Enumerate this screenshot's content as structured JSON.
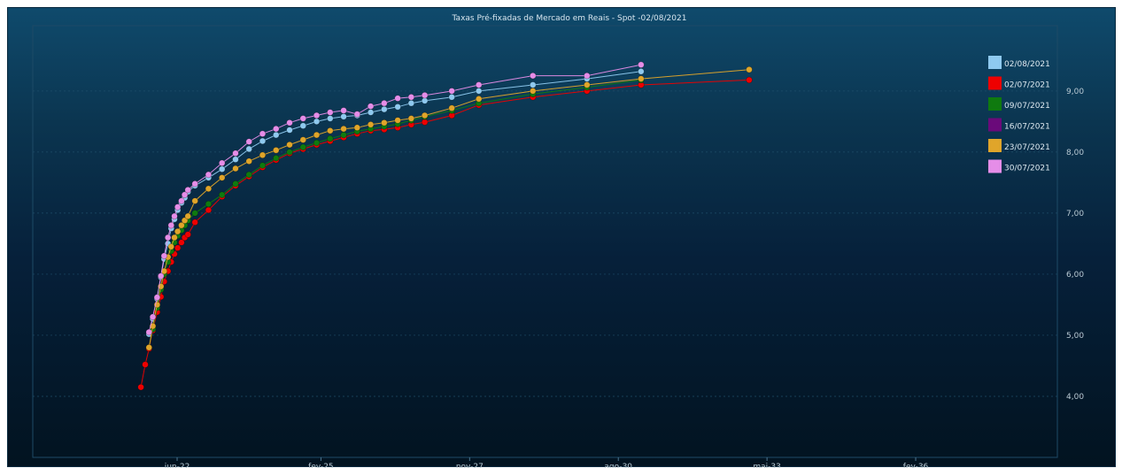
{
  "chart_data": {
    "type": "line",
    "title": "Taxas Pré-fixadas de Mercado em Reais - Spot -02/08/2021",
    "xlabel": "",
    "ylabel": "",
    "x_axis_unit": "year",
    "x_ticks": [
      {
        "label": "jun-22",
        "value": 2022.42
      },
      {
        "label": "fev-25",
        "value": 2025.08
      },
      {
        "label": "nov-27",
        "value": 2027.83
      },
      {
        "label": "ago-30",
        "value": 2030.58
      },
      {
        "label": "mai-33",
        "value": 2033.33
      },
      {
        "label": "fev-36",
        "value": 2036.08
      }
    ],
    "y_ticks": [
      "4,00",
      "5,00",
      "6,00",
      "7,00",
      "8,00",
      "9,00"
    ],
    "y_tick_values": [
      4,
      5,
      6,
      7,
      8,
      9
    ],
    "xlim": [
      2019.75,
      2038.7
    ],
    "ylim": [
      3.0,
      10.07
    ],
    "grid": true,
    "y_axis_position": "right",
    "legend_position": "top-right",
    "series": [
      {
        "name": "02/08/2021",
        "color": "#8ec9ef",
        "x": [
          2021.9,
          2021.97,
          2022.05,
          2022.12,
          2022.18,
          2022.25,
          2022.31,
          2022.37,
          2022.43,
          2022.5,
          2022.56,
          2022.62,
          2022.75,
          2023.0,
          2023.25,
          2023.5,
          2023.75,
          2024.0,
          2024.25,
          2024.5,
          2024.75,
          2025.0,
          2025.25,
          2025.5,
          2025.75,
          2026.0,
          2026.25,
          2026.5,
          2026.75,
          2027.0,
          2027.5,
          2028.0,
          2029.0,
          2030.0,
          2031.0
        ],
        "y": [
          5.02,
          5.27,
          5.6,
          5.95,
          6.25,
          6.5,
          6.75,
          6.9,
          7.05,
          7.17,
          7.25,
          7.35,
          7.45,
          7.58,
          7.72,
          7.88,
          8.05,
          8.18,
          8.28,
          8.36,
          8.43,
          8.5,
          8.55,
          8.58,
          8.6,
          8.65,
          8.7,
          8.74,
          8.8,
          8.84,
          8.9,
          9.0,
          9.1,
          9.2,
          9.32
        ]
      },
      {
        "name": "02/07/2021",
        "color": "#ee0000",
        "x": [
          2021.75,
          2021.83,
          2021.9,
          2021.97,
          2022.05,
          2022.12,
          2022.18,
          2022.25,
          2022.31,
          2022.37,
          2022.43,
          2022.5,
          2022.56,
          2022.62,
          2022.75,
          2023.0,
          2023.25,
          2023.5,
          2023.75,
          2024.0,
          2024.25,
          2024.5,
          2024.75,
          2025.0,
          2025.25,
          2025.5,
          2025.75,
          2026.0,
          2026.25,
          2026.5,
          2026.75,
          2027.0,
          2027.5,
          2028.0,
          2029.0,
          2030.0,
          2031.0,
          2033.0
        ],
        "y": [
          4.15,
          4.52,
          4.78,
          5.08,
          5.38,
          5.63,
          5.88,
          6.05,
          6.2,
          6.33,
          6.43,
          6.52,
          6.6,
          6.65,
          6.85,
          7.05,
          7.27,
          7.45,
          7.6,
          7.75,
          7.87,
          7.98,
          8.05,
          8.12,
          8.18,
          8.24,
          8.3,
          8.35,
          8.37,
          8.4,
          8.45,
          8.49,
          8.6,
          8.77,
          8.9,
          9.0,
          9.1,
          9.18
        ]
      },
      {
        "name": "09/07/2021",
        "color": "#0f7a0f",
        "x": [
          2021.9,
          2021.97,
          2022.05,
          2022.12,
          2022.18,
          2022.25,
          2022.31,
          2022.37,
          2022.43,
          2022.5,
          2022.56,
          2022.62,
          2022.75,
          2023.0,
          2023.25,
          2023.5,
          2023.75,
          2024.0,
          2024.25,
          2024.5,
          2024.75,
          2025.0,
          2025.25,
          2025.5,
          2025.75,
          2026.0,
          2026.25,
          2026.5,
          2026.75,
          2027.0,
          2027.5,
          2028.0,
          2029.0,
          2030.0,
          2031.0
        ],
        "y": [
          4.8,
          5.1,
          5.45,
          5.75,
          6.0,
          6.2,
          6.38,
          6.52,
          6.63,
          6.72,
          6.8,
          6.88,
          7.0,
          7.15,
          7.3,
          7.48,
          7.63,
          7.78,
          7.9,
          8.0,
          8.08,
          8.15,
          8.22,
          8.28,
          8.34,
          8.38,
          8.42,
          8.46,
          8.52,
          8.58,
          8.68,
          8.8,
          8.95,
          9.06,
          9.18
        ]
      },
      {
        "name": "16/07/2021",
        "color": "#6a0a7a",
        "x": [],
        "y": []
      },
      {
        "name": "23/07/2021",
        "color": "#e0a52a",
        "x": [
          2021.9,
          2021.97,
          2022.05,
          2022.12,
          2022.18,
          2022.25,
          2022.31,
          2022.37,
          2022.43,
          2022.5,
          2022.56,
          2022.62,
          2022.75,
          2023.0,
          2023.25,
          2023.5,
          2023.75,
          2024.0,
          2024.25,
          2024.5,
          2024.75,
          2025.0,
          2025.25,
          2025.5,
          2025.75,
          2026.0,
          2026.25,
          2026.5,
          2026.75,
          2027.0,
          2027.5,
          2028.0,
          2029.0,
          2030.0,
          2031.0,
          2033.0
        ],
        "y": [
          4.8,
          5.15,
          5.5,
          5.8,
          6.05,
          6.28,
          6.45,
          6.6,
          6.7,
          6.8,
          6.88,
          6.95,
          7.2,
          7.4,
          7.58,
          7.73,
          7.85,
          7.95,
          8.03,
          8.12,
          8.2,
          8.28,
          8.35,
          8.38,
          8.4,
          8.45,
          8.48,
          8.52,
          8.55,
          8.6,
          8.72,
          8.87,
          9.0,
          9.1,
          9.2,
          9.35
        ]
      },
      {
        "name": "30/07/2021",
        "color": "#e58de8",
        "x": [
          2021.9,
          2021.97,
          2022.05,
          2022.12,
          2022.18,
          2022.25,
          2022.31,
          2022.37,
          2022.43,
          2022.5,
          2022.56,
          2022.62,
          2022.75,
          2023.0,
          2023.25,
          2023.5,
          2023.75,
          2024.0,
          2024.25,
          2024.5,
          2024.75,
          2025.0,
          2025.25,
          2025.5,
          2025.75,
          2026.0,
          2026.25,
          2026.5,
          2026.75,
          2027.0,
          2027.5,
          2028.0,
          2029.0,
          2030.0,
          2031.0
        ],
        "y": [
          5.05,
          5.3,
          5.62,
          5.97,
          6.3,
          6.6,
          6.8,
          6.95,
          7.1,
          7.2,
          7.3,
          7.38,
          7.48,
          7.63,
          7.82,
          7.98,
          8.17,
          8.3,
          8.38,
          8.48,
          8.55,
          8.6,
          8.65,
          8.68,
          8.62,
          8.75,
          8.8,
          8.88,
          8.9,
          8.93,
          9.0,
          9.1,
          9.25,
          9.25,
          9.43
        ]
      }
    ]
  }
}
